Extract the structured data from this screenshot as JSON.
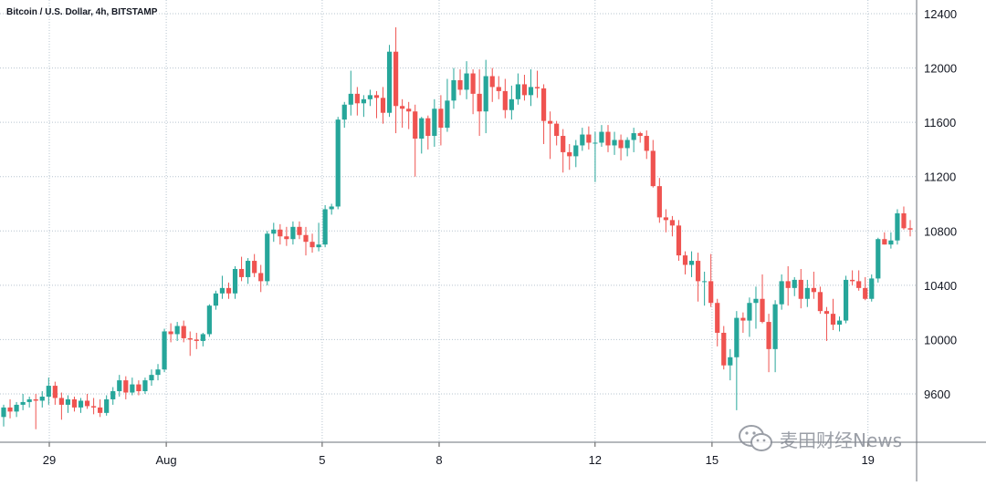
{
  "chart_data": {
    "type": "candlestick",
    "title": "Bitcoin / U.S. Dollar, 4h, BITSTAMP",
    "ylim": [
      9300,
      12500
    ],
    "y_ticks": [
      12400,
      12000,
      11600,
      11200,
      10800,
      10400,
      10000,
      9600
    ],
    "x_range_days": [
      27.5,
      50.6
    ],
    "x_ticks": [
      {
        "label": "29",
        "day": 29
      },
      {
        "label": "Aug",
        "day": 32
      },
      {
        "label": "5",
        "day": 36
      },
      {
        "label": "8",
        "day": 39
      },
      {
        "label": "12",
        "day": 43
      },
      {
        "label": "15",
        "day": 46
      },
      {
        "label": "19",
        "day": 50
      }
    ],
    "colors": {
      "up": "#26a69a",
      "down": "#ef5350",
      "grid": "#b7c4cf"
    },
    "candles": [
      [
        9430,
        9520,
        9360,
        9500
      ],
      [
        9500,
        9560,
        9420,
        9470
      ],
      [
        9470,
        9540,
        9430,
        9520
      ],
      [
        9520,
        9600,
        9480,
        9540
      ],
      [
        9540,
        9580,
        9500,
        9560
      ],
      [
        9560,
        9600,
        9340,
        9550
      ],
      [
        9550,
        9620,
        9500,
        9580
      ],
      [
        9580,
        9720,
        9520,
        9660
      ],
      [
        9660,
        9690,
        9520,
        9570
      ],
      [
        9570,
        9610,
        9410,
        9520
      ],
      [
        9520,
        9590,
        9460,
        9560
      ],
      [
        9560,
        9580,
        9470,
        9500
      ],
      [
        9500,
        9570,
        9460,
        9550
      ],
      [
        9550,
        9600,
        9490,
        9510
      ],
      [
        9510,
        9570,
        9450,
        9500
      ],
      [
        9500,
        9560,
        9430,
        9460
      ],
      [
        9460,
        9590,
        9440,
        9560
      ],
      [
        9560,
        9650,
        9520,
        9620
      ],
      [
        9620,
        9740,
        9580,
        9700
      ],
      [
        9700,
        9730,
        9560,
        9610
      ],
      [
        9610,
        9720,
        9590,
        9670
      ],
      [
        9670,
        9700,
        9590,
        9620
      ],
      [
        9620,
        9720,
        9600,
        9700
      ],
      [
        9700,
        9780,
        9660,
        9740
      ],
      [
        9740,
        9820,
        9700,
        9780
      ],
      [
        9780,
        10080,
        9760,
        10060
      ],
      [
        10060,
        10120,
        9980,
        10040
      ],
      [
        10040,
        10130,
        9990,
        10100
      ],
      [
        10100,
        10140,
        9980,
        10010
      ],
      [
        10010,
        10060,
        9880,
        10000
      ],
      [
        10000,
        10050,
        9930,
        9990
      ],
      [
        9990,
        10050,
        9950,
        10040
      ],
      [
        10040,
        10260,
        10020,
        10250
      ],
      [
        10250,
        10360,
        10220,
        10340
      ],
      [
        10340,
        10470,
        10300,
        10380
      ],
      [
        10380,
        10420,
        10300,
        10340
      ],
      [
        10340,
        10540,
        10300,
        10520
      ],
      [
        10520,
        10610,
        10430,
        10460
      ],
      [
        10460,
        10600,
        10410,
        10580
      ],
      [
        10580,
        10630,
        10460,
        10490
      ],
      [
        10490,
        10550,
        10350,
        10430
      ],
      [
        10430,
        10800,
        10400,
        10780
      ],
      [
        10780,
        10860,
        10720,
        10810
      ],
      [
        10810,
        10850,
        10700,
        10760
      ],
      [
        10760,
        10830,
        10690,
        10740
      ],
      [
        10740,
        10870,
        10700,
        10830
      ],
      [
        10830,
        10870,
        10740,
        10770
      ],
      [
        10770,
        10830,
        10620,
        10720
      ],
      [
        10720,
        10780,
        10640,
        10680
      ],
      [
        10680,
        10860,
        10650,
        10700
      ],
      [
        10700,
        10990,
        10680,
        10960
      ],
      [
        10960,
        11000,
        10920,
        10980
      ],
      [
        10980,
        11640,
        10960,
        11620
      ],
      [
        11620,
        11750,
        11560,
        11730
      ],
      [
        11730,
        11980,
        11650,
        11810
      ],
      [
        11810,
        11860,
        11650,
        11740
      ],
      [
        11740,
        11800,
        11640,
        11770
      ],
      [
        11770,
        11840,
        11720,
        11800
      ],
      [
        11800,
        11830,
        11630,
        11780
      ],
      [
        11780,
        11860,
        11590,
        11670
      ],
      [
        11670,
        12170,
        11640,
        12120
      ],
      [
        12120,
        12300,
        11520,
        11720
      ],
      [
        11720,
        11770,
        11560,
        11700
      ],
      [
        11700,
        11750,
        11550,
        11680
      ],
      [
        11680,
        11730,
        11200,
        11480
      ],
      [
        11480,
        11640,
        11370,
        11630
      ],
      [
        11630,
        11650,
        11400,
        11500
      ],
      [
        11500,
        11770,
        11420,
        11700
      ],
      [
        11700,
        11800,
        11430,
        11560
      ],
      [
        11560,
        11920,
        11530,
        11760
      ],
      [
        11760,
        12000,
        11700,
        11910
      ],
      [
        11910,
        11990,
        11800,
        11840
      ],
      [
        11840,
        12050,
        11770,
        11960
      ],
      [
        11960,
        11990,
        11660,
        11810
      ],
      [
        11810,
        11990,
        11500,
        11680
      ],
      [
        11680,
        12060,
        11520,
        11940
      ],
      [
        11940,
        12000,
        11750,
        11860
      ],
      [
        11860,
        11940,
        11770,
        11830
      ],
      [
        11830,
        11920,
        11630,
        11690
      ],
      [
        11690,
        11870,
        11620,
        11770
      ],
      [
        11770,
        11960,
        11730,
        11880
      ],
      [
        11880,
        11950,
        11760,
        11800
      ],
      [
        11800,
        11990,
        11720,
        11860
      ],
      [
        11860,
        11980,
        11780,
        11850
      ],
      [
        11850,
        11880,
        11440,
        11610
      ],
      [
        11610,
        11680,
        11330,
        11590
      ],
      [
        11590,
        11610,
        11430,
        11500
      ],
      [
        11500,
        11550,
        11230,
        11380
      ],
      [
        11380,
        11440,
        11250,
        11350
      ],
      [
        11350,
        11470,
        11270,
        11430
      ],
      [
        11430,
        11560,
        11390,
        11510
      ],
      [
        11510,
        11570,
        11400,
        11450
      ],
      [
        11450,
        11530,
        11160,
        11450
      ],
      [
        11450,
        11580,
        11420,
        11530
      ],
      [
        11530,
        11580,
        11380,
        11430
      ],
      [
        11430,
        11530,
        11360,
        11470
      ],
      [
        11470,
        11510,
        11320,
        11410
      ],
      [
        11410,
        11490,
        11350,
        11470
      ],
      [
        11470,
        11560,
        11380,
        11520
      ],
      [
        11520,
        11530,
        11450,
        11500
      ],
      [
        11500,
        11540,
        11330,
        11390
      ],
      [
        11390,
        11470,
        11120,
        11130
      ],
      [
        11130,
        11190,
        10860,
        10900
      ],
      [
        10900,
        10960,
        10790,
        10880
      ],
      [
        10880,
        10910,
        10760,
        10840
      ],
      [
        10840,
        10880,
        10580,
        10620
      ],
      [
        10620,
        10650,
        10480,
        10550
      ],
      [
        10550,
        10650,
        10460,
        10580
      ],
      [
        10580,
        10640,
        10280,
        10430
      ],
      [
        10430,
        10500,
        10250,
        10430
      ],
      [
        10430,
        10630,
        10240,
        10270
      ],
      [
        10270,
        10300,
        9950,
        10050
      ],
      [
        10050,
        10100,
        9780,
        9810
      ],
      [
        9810,
        9930,
        9700,
        9870
      ],
      [
        9870,
        10210,
        9480,
        10160
      ],
      [
        10160,
        10200,
        10050,
        10140
      ],
      [
        10140,
        10310,
        10020,
        10270
      ],
      [
        10270,
        10390,
        10080,
        10300
      ],
      [
        10300,
        10480,
        10120,
        10130
      ],
      [
        10130,
        10190,
        9760,
        9930
      ],
      [
        9930,
        10290,
        9760,
        10260
      ],
      [
        10260,
        10480,
        10220,
        10430
      ],
      [
        10430,
        10540,
        10250,
        10380
      ],
      [
        10380,
        10460,
        10320,
        10440
      ],
      [
        10440,
        10520,
        10230,
        10300
      ],
      [
        10300,
        10440,
        10240,
        10380
      ],
      [
        10380,
        10500,
        10300,
        10350
      ],
      [
        10350,
        10390,
        10190,
        10210
      ],
      [
        10210,
        10240,
        9990,
        10190
      ],
      [
        10190,
        10300,
        10070,
        10110
      ],
      [
        10110,
        10170,
        10060,
        10140
      ],
      [
        10140,
        10470,
        10120,
        10440
      ],
      [
        10440,
        10510,
        10400,
        10430
      ],
      [
        10430,
        10510,
        10360,
        10380
      ],
      [
        10380,
        10460,
        10290,
        10300
      ],
      [
        10300,
        10480,
        10280,
        10450
      ],
      [
        10450,
        10750,
        10420,
        10740
      ],
      [
        10740,
        10790,
        10700,
        10700
      ],
      [
        10700,
        10790,
        10670,
        10730
      ],
      [
        10730,
        10960,
        10700,
        10930
      ],
      [
        10930,
        10980,
        10810,
        10820
      ],
      [
        10820,
        10880,
        10760,
        10810
      ]
    ]
  }
}
